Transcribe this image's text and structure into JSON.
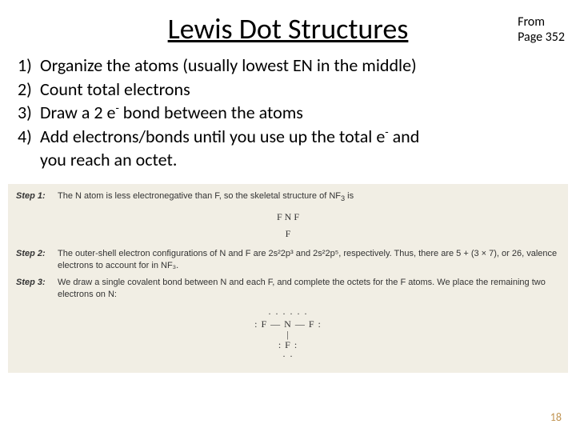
{
  "title": "Lewis Dot Structures",
  "page_ref_line1": "From",
  "page_ref_line2": "Page 352",
  "slide_number": "18",
  "steps": {
    "n1": "1)",
    "t1": "Organize the atoms (usually lowest EN in the middle)",
    "n2": "2)",
    "t2": "Count total electrons",
    "n3": "3)",
    "t3a": "Draw a 2 e",
    "t3sup": "-",
    "t3b": " bond between the atoms",
    "n4": "4)",
    "t4a": "Add electrons/bonds until you use up the total e",
    "t4sup": "-",
    "t4b": " and",
    "t4c": "you reach an octet."
  },
  "textbook": {
    "step1_label": "Step 1:",
    "step1_body_a": "The N atom is less electronegative than F, so the skeletal structure of NF",
    "step1_body_sub": "3",
    "step1_body_b": " is",
    "formula_row1": "F   N   F",
    "formula_row2": "F",
    "step2_label": "Step 2:",
    "step2_body": "The outer-shell electron configurations of N and F are 2s²2p³ and 2s²2p⁵, respectively. Thus, there are 5 + (3 × 7), or 26, valence electrons to account for in NF₃.",
    "step3_label": "Step 3:",
    "step3_body": "We draw a single covalent bond between N and each F, and complete the octets for the F atoms. We place the remaining two electrons on N:",
    "lewis_top": "· ·        · ·        · ·",
    "lewis_mid": ": F — N — F :",
    "lewis_bar": "|",
    "lewis_bot": ": F :",
    "lewis_dots": "· ·"
  },
  "colors": {
    "bg": "#ffffff",
    "textbook_bg": "#f1eee4",
    "slide_num": "#c19553"
  }
}
